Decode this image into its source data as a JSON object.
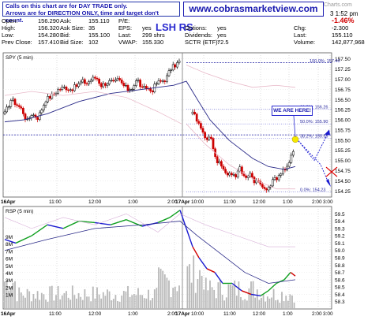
{
  "header": {
    "note_line1": "Calls on this chart are for DAY TRADE only.",
    "note_line2": "Arrows are for DIRECTION ONLY, time and target don't count.",
    "url": "www.cobrasmarketview.com",
    "watermark": "Charts.com",
    "time": "3 1:52 pm",
    "symbol": "LSH RS",
    "quote_rows": [
      [
        {
          "k": "Open:",
          "v": "156.290"
        },
        {
          "k": "Ask:",
          "v": "155.110"
        },
        {
          "k": "P/E:",
          "v": ""
        }
      ],
      [
        {
          "k": "High:",
          "v": "156.320"
        },
        {
          "k": "Ask Size:",
          "v": "35"
        },
        {
          "k": "EPS:",
          "v": "yes"
        }
      ],
      [
        {
          "k": "Low:",
          "v": "154.280"
        },
        {
          "k": "Bid:",
          "v": "155.100"
        },
        {
          "k": "Last:",
          "v": "299 shrs"
        }
      ],
      [
        {
          "k": "Prev Close:",
          "v": "157.410"
        },
        {
          "k": "Bid Size:",
          "v": "102"
        },
        {
          "k": "VWAP:",
          "v": "155.330"
        }
      ]
    ],
    "quote_col4": [
      {
        "k": "Options:",
        "v": "yes"
      },
      {
        "k": "Dividends:",
        "v": "yes"
      },
      {
        "k": "SCTR (ETF):",
        "v": "72.5"
      }
    ],
    "right_rows": [
      {
        "k": "",
        "v": "-1.46%"
      },
      {
        "k": "Chg:",
        "v": "-2.300"
      },
      {
        "k": "Last:",
        "v": "155.110"
      },
      {
        "k": "Volume:",
        "v": "142,877,968"
      }
    ]
  },
  "chart_data": [
    {
      "type": "candlestick",
      "title": "SPY (5 min)",
      "callout": "WE ARE HERE!",
      "ylim": [
        154.1,
        157.65
      ],
      "y_ticks": [
        "157.50",
        "157.25",
        "157.00",
        "156.75",
        "156.50",
        "156.25",
        "156.00",
        "155.75",
        "155.50",
        "155.25",
        "155.00",
        "154.75",
        "154.50",
        "154.25"
      ],
      "fib_labels": [
        "100.0%: 157.40",
        "61.8%: 156.26",
        "50.0%: 155.90",
        "38.2%: 155.55",
        "0.0%: 154.23"
      ],
      "fib_levels": [
        157.4,
        156.26,
        155.9,
        155.55,
        154.23
      ],
      "prev_close": 157.41,
      "target_level": 155.63,
      "x_labels": [
        "16Apr",
        "11:00",
        "12:00",
        "1:00",
        "2:00",
        "3:00",
        "17Apr",
        "10:00",
        "11:00",
        "12:00",
        "1:00",
        "2:00",
        "3:00"
      ],
      "colors": {
        "up": "#000000",
        "down": "#cc0000",
        "ma": "#2a2a88",
        "band": "#e8b8c8",
        "fib": "#1a1aa0",
        "arrow": "#1a1ad0",
        "dot": "#f5e800"
      }
    },
    {
      "type": "line",
      "title": "RSP (5 min)",
      "ylim": [
        58.2,
        59.6
      ],
      "y_ticks": [
        "59.5",
        "59.4",
        "59.3",
        "59.2",
        "59.1",
        "59.0",
        "58.9",
        "58.8",
        "58.7",
        "58.6",
        "58.5",
        "58.4",
        "58.3"
      ],
      "volume_ticks": [
        "9M",
        "8M",
        "7M",
        "6M",
        "5M",
        "4M",
        "3M",
        "2M",
        "1M"
      ],
      "x_labels": [
        "16Apr",
        "11:00",
        "12:00",
        "1:00",
        "2:00",
        "3:00",
        "17Apr",
        "10:00",
        "11:00",
        "12:00",
        "1:00",
        "2:00",
        "3:00"
      ]
    }
  ]
}
